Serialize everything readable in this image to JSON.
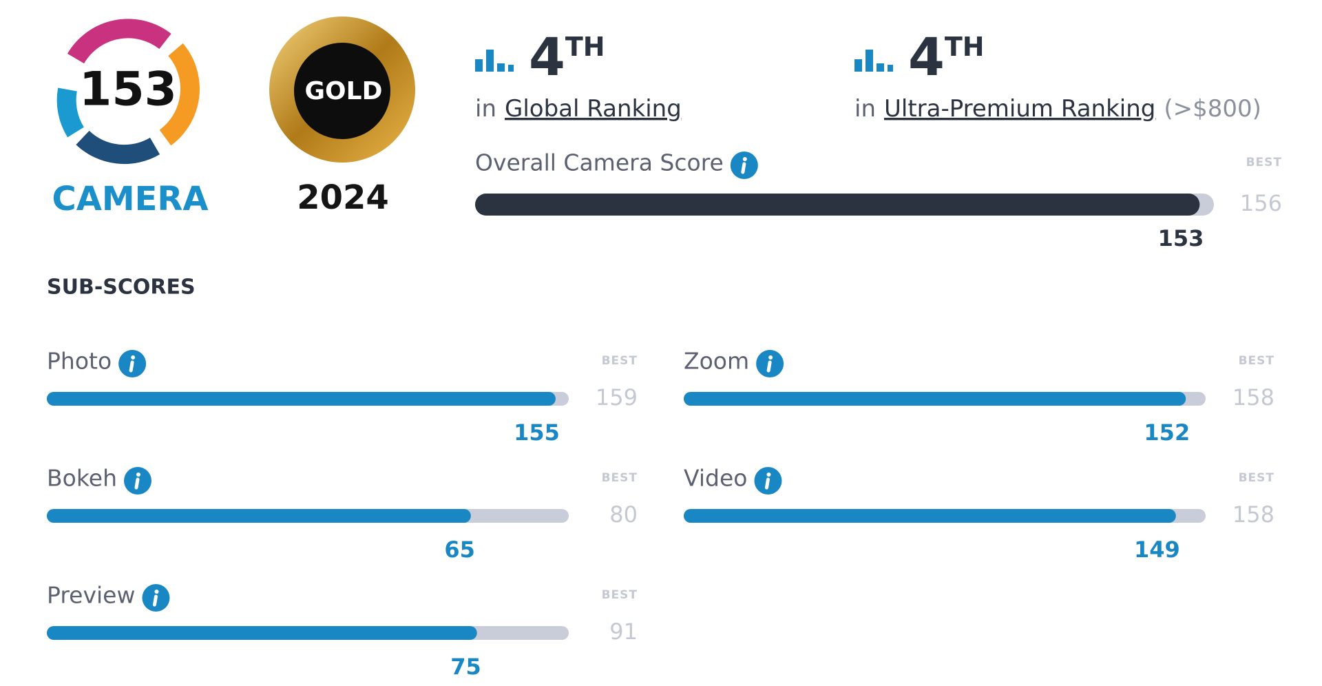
{
  "badge": {
    "score": "153",
    "label": "CAMERA"
  },
  "award": {
    "tier": "GOLD",
    "year": "2024"
  },
  "rankings": [
    {
      "rank": 4,
      "suffix": "TH",
      "prefix": "in",
      "name": "Global Ranking"
    },
    {
      "rank": 4,
      "suffix": "TH",
      "prefix": "in",
      "name": "Ultra-Premium Ranking",
      "note": "(>$800)"
    }
  ],
  "overall": {
    "label": "Overall Camera Score",
    "best_label": "BEST",
    "best": 156,
    "score": 153
  },
  "subscores": {
    "title": "SUB-SCORES",
    "items": [
      {
        "name": "Photo",
        "best_label": "BEST",
        "best": 159,
        "score": 155
      },
      {
        "name": "Zoom",
        "best_label": "BEST",
        "best": 158,
        "score": 152
      },
      {
        "name": "Bokeh",
        "best_label": "BEST",
        "best": 80,
        "score": 65
      },
      {
        "name": "Video",
        "best_label": "BEST",
        "best": 158,
        "score": 149
      },
      {
        "name": "Preview",
        "best_label": "BEST",
        "best": 91,
        "score": 75
      }
    ]
  }
}
